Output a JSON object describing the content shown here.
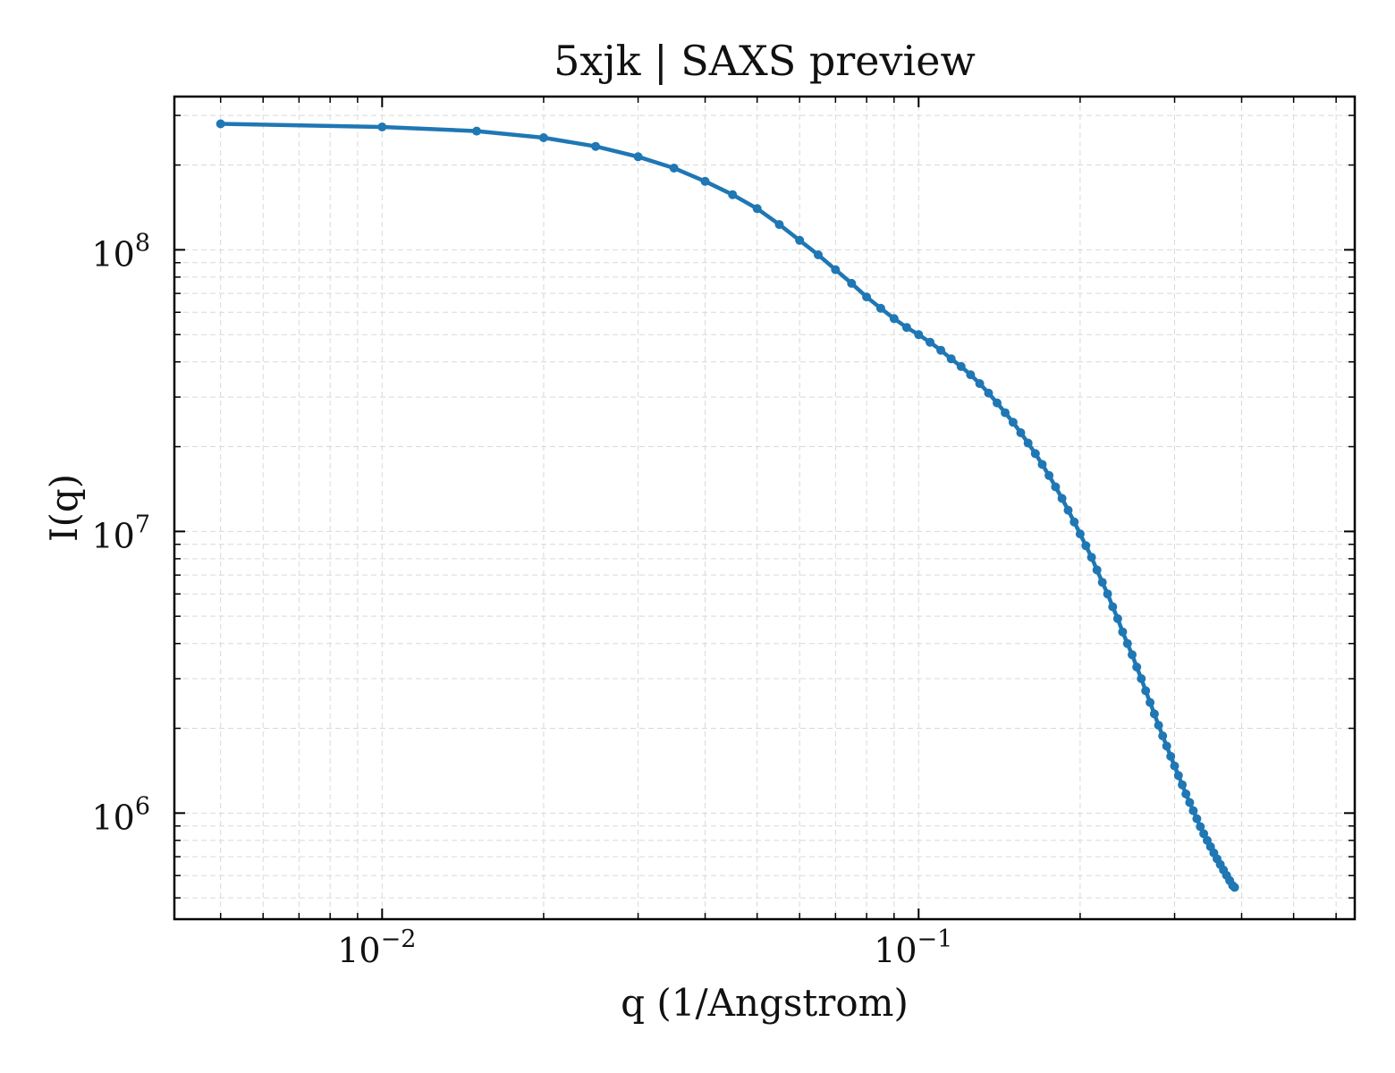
{
  "chart_data": {
    "type": "line",
    "title": "5xjk | SAXS preview",
    "xlabel": "q (1/Angstrom)",
    "ylabel": "I(q)",
    "xscale": "log",
    "yscale": "log",
    "xlim": [
      0.0041,
      0.65
    ],
    "ylim": [
      420000,
      350000000
    ],
    "x_ticks": [
      {
        "value": 0.01,
        "base": "10",
        "exp": "−2"
      },
      {
        "value": 0.1,
        "base": "10",
        "exp": "−1"
      }
    ],
    "y_ticks": [
      {
        "value": 1000000,
        "base": "10",
        "exp": "6"
      },
      {
        "value": 10000000,
        "base": "10",
        "exp": "7"
      },
      {
        "value": 100000000,
        "base": "10",
        "exp": "8"
      }
    ],
    "grid": true,
    "series": [
      {
        "color": "#1f77b4",
        "marker": "circle",
        "points": [
          [
            0.005,
            280000000
          ],
          [
            0.01,
            273000000
          ],
          [
            0.015,
            264000000
          ],
          [
            0.02,
            250000000
          ],
          [
            0.025,
            233000000
          ],
          [
            0.03,
            214000000
          ],
          [
            0.035,
            195000000
          ],
          [
            0.04,
            175000000
          ],
          [
            0.045,
            157000000
          ],
          [
            0.05,
            140000000
          ],
          [
            0.055,
            123000000
          ],
          [
            0.06,
            108000000
          ],
          [
            0.065,
            96000000
          ],
          [
            0.07,
            85000000
          ],
          [
            0.075,
            76000000
          ],
          [
            0.08,
            68000000
          ],
          [
            0.085,
            62000000
          ],
          [
            0.09,
            57000000
          ],
          [
            0.095,
            53000000
          ],
          [
            0.1,
            50000000
          ],
          [
            0.105,
            47000000
          ],
          [
            0.11,
            44000000
          ],
          [
            0.115,
            41000000
          ],
          [
            0.12,
            38500000
          ],
          [
            0.125,
            36000000
          ],
          [
            0.13,
            33500000
          ],
          [
            0.135,
            31000000
          ],
          [
            0.14,
            28600000
          ],
          [
            0.145,
            26400000
          ],
          [
            0.15,
            24400000
          ],
          [
            0.155,
            22400000
          ],
          [
            0.16,
            20600000
          ],
          [
            0.165,
            18900000
          ],
          [
            0.17,
            17300000
          ],
          [
            0.175,
            15800000
          ],
          [
            0.18,
            14400000
          ],
          [
            0.185,
            13100000
          ],
          [
            0.19,
            11900000
          ],
          [
            0.195,
            10800000
          ],
          [
            0.2,
            9800000
          ],
          [
            0.205,
            8900000
          ],
          [
            0.21,
            8100000
          ],
          [
            0.215,
            7300000
          ],
          [
            0.22,
            6600000
          ],
          [
            0.225,
            6000000
          ],
          [
            0.23,
            5400000
          ],
          [
            0.235,
            4900000
          ],
          [
            0.24,
            4400000
          ],
          [
            0.245,
            4000000
          ],
          [
            0.25,
            3650000
          ],
          [
            0.255,
            3300000
          ],
          [
            0.26,
            3000000
          ],
          [
            0.265,
            2720000
          ],
          [
            0.27,
            2470000
          ],
          [
            0.275,
            2250000
          ],
          [
            0.28,
            2050000
          ],
          [
            0.285,
            1880000
          ],
          [
            0.29,
            1730000
          ],
          [
            0.295,
            1590000
          ],
          [
            0.3,
            1470000
          ],
          [
            0.305,
            1360000
          ],
          [
            0.31,
            1260000
          ],
          [
            0.315,
            1170000
          ],
          [
            0.32,
            1090000
          ],
          [
            0.325,
            1020000
          ],
          [
            0.33,
            955000
          ],
          [
            0.335,
            895000
          ],
          [
            0.34,
            845000
          ],
          [
            0.345,
            800000
          ],
          [
            0.35,
            760000
          ],
          [
            0.355,
            722000
          ],
          [
            0.36,
            688000
          ],
          [
            0.365,
            657000
          ],
          [
            0.37,
            628000
          ],
          [
            0.375,
            601000
          ],
          [
            0.38,
            576000
          ],
          [
            0.385,
            553000
          ],
          [
            0.388,
            545000
          ]
        ]
      }
    ]
  }
}
